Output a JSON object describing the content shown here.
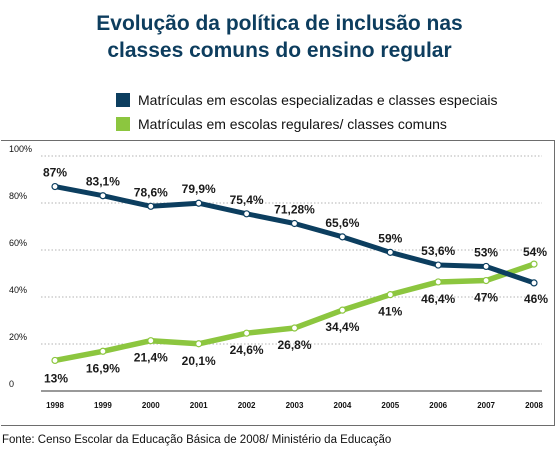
{
  "title_line1": "Evolução da política de inclusão nas",
  "title_line2": "classes comuns do ensino regular",
  "source": "Fonte: Censo Escolar da Educação Básica de 2008/ Ministério da Educação",
  "colors": {
    "title": "#0d3d5e",
    "series1": "#0c3e5f",
    "series2": "#8cc63f",
    "grid": "#9a9a9a"
  },
  "chart_data": {
    "type": "line",
    "x": [
      "1998",
      "1999",
      "2000",
      "2001",
      "2002",
      "2003",
      "2004",
      "2005",
      "2006",
      "2007",
      "2008"
    ],
    "ylim": [
      0,
      100
    ],
    "yticks": [
      0,
      20,
      40,
      60,
      80,
      100
    ],
    "ytick_labels": [
      "0",
      "20%",
      "40%",
      "60%",
      "80%",
      "100%"
    ],
    "grid": true,
    "legend_position": "top",
    "series": [
      {
        "name": "Matrículas em escolas especializadas e classes especiais",
        "values": [
          87,
          83.1,
          78.6,
          79.9,
          75.4,
          71.28,
          65.6,
          59,
          53.6,
          53,
          46
        ],
        "labels": [
          "87%",
          "83,1%",
          "78,6%",
          "79,9%",
          "75,4%",
          "71,28%",
          "65,6%",
          "59%",
          "53,6%",
          "53%",
          "46%"
        ]
      },
      {
        "name": "Matrículas em escolas regulares/ classes comuns",
        "values": [
          13,
          16.9,
          21.4,
          20.1,
          24.6,
          26.8,
          34.4,
          41,
          46.4,
          47,
          54
        ],
        "labels": [
          "13%",
          "16,9%",
          "21,4%",
          "20,1%",
          "24,6%",
          "26,8%",
          "34,4%",
          "41%",
          "46,4%",
          "47%",
          "54%"
        ]
      }
    ]
  }
}
